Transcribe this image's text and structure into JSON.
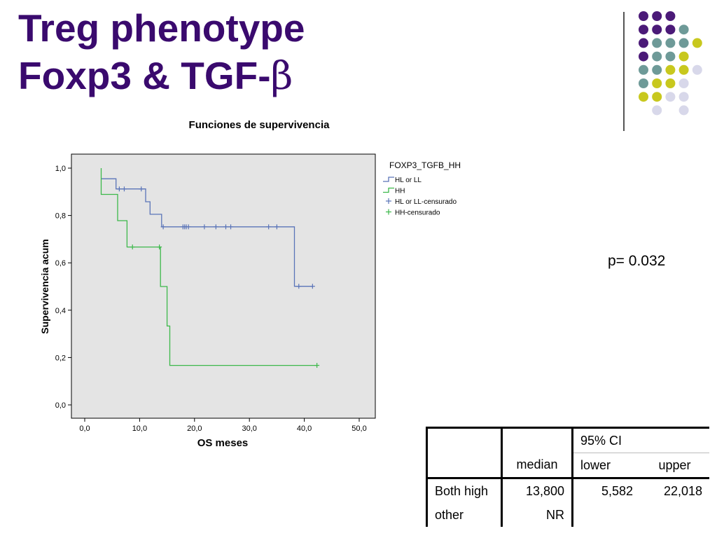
{
  "slide": {
    "title_line1": "Treg phenotype",
    "title_line2_prefix": "Foxp3 & TGF-",
    "title_line2_symbol": "β",
    "title_color": "#3a0a6e",
    "p_value": "p= 0.032"
  },
  "decoration": {
    "dot_colors": {
      "purple": "#4b1a78",
      "teal": "#6e9a98",
      "olive": "#c8c81e",
      "lavender": "#d8d8ea"
    },
    "dot_rows": [
      [
        "purple",
        "purple",
        "purple",
        null,
        null
      ],
      [
        "purple",
        "purple",
        "purple",
        "teal",
        null
      ],
      [
        "purple",
        "teal",
        "teal",
        "teal",
        "olive"
      ],
      [
        "purple",
        "teal",
        "teal",
        "olive",
        null
      ],
      [
        "teal",
        "teal",
        "olive",
        "olive",
        "lavender"
      ],
      [
        "teal",
        "olive",
        "olive",
        "lavender",
        null
      ],
      [
        "olive",
        "olive",
        "lavender",
        "lavender",
        null
      ],
      [
        null,
        "lavender",
        null,
        "lavender",
        null
      ]
    ]
  },
  "chart_data": {
    "type": "line",
    "subtype": "kaplan-meier",
    "title": "Funciones de supervivencia",
    "xlabel": "OS meses",
    "ylabel": "Supervivencia acum",
    "xlim": [
      0,
      50
    ],
    "ylim": [
      0,
      1
    ],
    "x_ticks": [
      "0,0",
      "10,0",
      "20,0",
      "30,0",
      "40,0",
      "50,0"
    ],
    "y_ticks": [
      "0,0",
      "0,2",
      "0,4",
      "0,6",
      "0,8",
      "1,0"
    ],
    "legend_title": "FOXP3_TGFB_HH",
    "legend_position": "right",
    "grid": false,
    "background": "#e4e4e4",
    "series": [
      {
        "name": "HL or LL",
        "censored_name": "HL or LL-censurado",
        "color": "#5a74b8",
        "steps": [
          [
            3.0,
            0.955
          ],
          [
            5.7,
            0.955
          ],
          [
            5.7,
            0.912
          ],
          [
            11.1,
            0.912
          ],
          [
            11.1,
            0.858
          ],
          [
            11.9,
            0.858
          ],
          [
            11.9,
            0.805
          ],
          [
            14.0,
            0.805
          ],
          [
            14.0,
            0.752
          ],
          [
            38.2,
            0.752
          ],
          [
            38.2,
            0.501
          ],
          [
            41.5,
            0.501
          ]
        ],
        "censored": [
          [
            6.3,
            0.912
          ],
          [
            7.2,
            0.912
          ],
          [
            10.3,
            0.912
          ],
          [
            14.3,
            0.752
          ],
          [
            17.9,
            0.752
          ],
          [
            18.2,
            0.752
          ],
          [
            18.5,
            0.752
          ],
          [
            18.9,
            0.752
          ],
          [
            21.8,
            0.752
          ],
          [
            23.9,
            0.752
          ],
          [
            25.7,
            0.752
          ],
          [
            26.6,
            0.752
          ],
          [
            33.5,
            0.752
          ],
          [
            35.0,
            0.752
          ],
          [
            39.0,
            0.501
          ],
          [
            41.5,
            0.501
          ]
        ]
      },
      {
        "name": "HH",
        "censored_name": "HH-censurado",
        "color": "#3cb84a",
        "steps": [
          [
            3.0,
            1.0
          ],
          [
            3.0,
            0.889
          ],
          [
            6.0,
            0.889
          ],
          [
            6.0,
            0.778
          ],
          [
            7.7,
            0.778
          ],
          [
            7.7,
            0.667
          ],
          [
            13.8,
            0.667
          ],
          [
            13.8,
            0.5
          ],
          [
            15.0,
            0.5
          ],
          [
            15.0,
            0.333
          ],
          [
            15.5,
            0.333
          ],
          [
            15.5,
            0.167
          ],
          [
            42.3,
            0.167
          ]
        ],
        "censored": [
          [
            8.7,
            0.667
          ],
          [
            13.6,
            0.667
          ],
          [
            42.3,
            0.167
          ]
        ]
      }
    ]
  },
  "table": {
    "ci_header": "95% CI",
    "headers": [
      "",
      "median",
      "lower",
      "upper"
    ],
    "rows": [
      [
        "Both high",
        "13,800",
        "5,582",
        "22,018"
      ],
      [
        "other",
        "NR",
        "",
        ""
      ]
    ]
  }
}
